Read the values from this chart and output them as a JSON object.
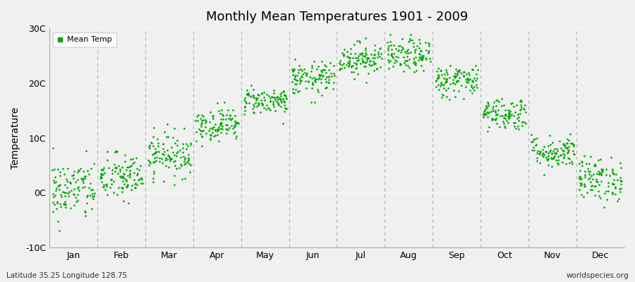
{
  "title": "Monthly Mean Temperatures 1901 - 2009",
  "ylabel": "Temperature",
  "xlabel_bottom_left": "Latitude 35.25 Longitude 128.75",
  "xlabel_bottom_right": "worldspecies.org",
  "ylim": [
    -10,
    30
  ],
  "yticks": [
    -10,
    0,
    10,
    20,
    30
  ],
  "ytick_labels": [
    "-10C",
    "0C",
    "10C",
    "20C",
    "30C"
  ],
  "month_names": [
    "Jan",
    "Feb",
    "Mar",
    "Apr",
    "May",
    "Jun",
    "Jul",
    "Aug",
    "Sep",
    "Oct",
    "Nov",
    "Dec"
  ],
  "legend_label": "Mean Temp",
  "dot_color": "#00aa00",
  "background_color": "#f0f0f0",
  "plot_bg_color": "#f0f0f0",
  "n_years": 109,
  "monthly_means": [
    0.5,
    2.8,
    7.0,
    12.5,
    16.8,
    20.8,
    24.5,
    25.0,
    20.5,
    14.5,
    7.5,
    2.5
  ],
  "monthly_stds": [
    2.8,
    2.2,
    2.0,
    1.5,
    1.2,
    1.5,
    1.5,
    1.5,
    1.5,
    1.5,
    1.5,
    2.0
  ],
  "seed": 42,
  "dot_size": 3,
  "spine_color": "#aaaaaa",
  "vline_color": "#888888",
  "figsize": [
    9.0,
    4.0
  ],
  "dpi": 100
}
